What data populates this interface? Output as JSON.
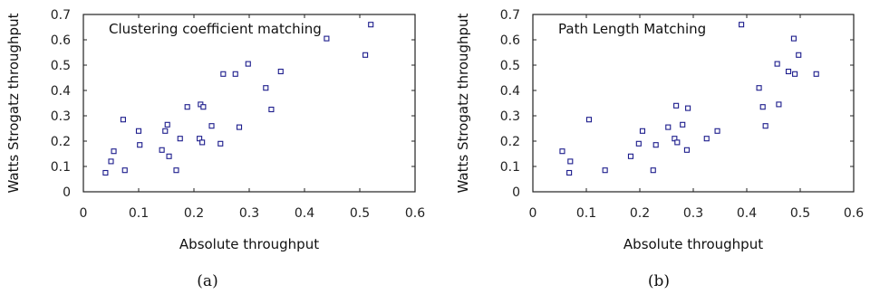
{
  "chart_data": [
    {
      "type": "scatter",
      "caption": "(a)",
      "title": "Clustering coefficient matching",
      "xlabel": "Absolute throughput",
      "ylabel": "Watts Strogatz throughput",
      "xlim": [
        0,
        0.6
      ],
      "ylim": [
        0,
        0.7
      ],
      "xticks": [
        "0",
        "0.1",
        "0.2",
        "0.3",
        "0.4",
        "0.5",
        "0.6"
      ],
      "yticks": [
        "0",
        "0.1",
        "0.2",
        "0.3",
        "0.4",
        "0.5",
        "0.6",
        "0.7"
      ],
      "grid": false,
      "marker_color": "#1c1c8c",
      "points": [
        [
          0.04,
          0.075
        ],
        [
          0.05,
          0.12
        ],
        [
          0.055,
          0.16
        ],
        [
          0.072,
          0.285
        ],
        [
          0.075,
          0.085
        ],
        [
          0.1,
          0.24
        ],
        [
          0.102,
          0.185
        ],
        [
          0.142,
          0.165
        ],
        [
          0.148,
          0.24
        ],
        [
          0.152,
          0.265
        ],
        [
          0.155,
          0.14
        ],
        [
          0.168,
          0.085
        ],
        [
          0.175,
          0.21
        ],
        [
          0.188,
          0.335
        ],
        [
          0.21,
          0.21
        ],
        [
          0.212,
          0.345
        ],
        [
          0.215,
          0.195
        ],
        [
          0.217,
          0.335
        ],
        [
          0.232,
          0.26
        ],
        [
          0.248,
          0.19
        ],
        [
          0.253,
          0.465
        ],
        [
          0.275,
          0.465
        ],
        [
          0.282,
          0.255
        ],
        [
          0.298,
          0.505
        ],
        [
          0.33,
          0.41
        ],
        [
          0.34,
          0.325
        ],
        [
          0.357,
          0.475
        ],
        [
          0.44,
          0.605
        ],
        [
          0.51,
          0.54
        ],
        [
          0.52,
          0.66
        ]
      ]
    },
    {
      "type": "scatter",
      "caption": "(b)",
      "title": "Path Length Matching",
      "xlabel": "Absolute throughput",
      "ylabel": "Watts Strogatz throughput",
      "xlim": [
        0,
        0.6
      ],
      "ylim": [
        0,
        0.7
      ],
      "xticks": [
        "0",
        "0.1",
        "0.2",
        "0.3",
        "0.4",
        "0.5",
        "0.6"
      ],
      "yticks": [
        "0",
        "0.1",
        "0.2",
        "0.3",
        "0.4",
        "0.5",
        "0.6",
        "0.7"
      ],
      "grid": false,
      "marker_color": "#1c1c8c",
      "points": [
        [
          0.055,
          0.16
        ],
        [
          0.068,
          0.075
        ],
        [
          0.07,
          0.12
        ],
        [
          0.105,
          0.285
        ],
        [
          0.135,
          0.085
        ],
        [
          0.183,
          0.14
        ],
        [
          0.198,
          0.19
        ],
        [
          0.205,
          0.24
        ],
        [
          0.225,
          0.085
        ],
        [
          0.23,
          0.185
        ],
        [
          0.253,
          0.255
        ],
        [
          0.265,
          0.21
        ],
        [
          0.268,
          0.34
        ],
        [
          0.27,
          0.195
        ],
        [
          0.28,
          0.265
        ],
        [
          0.288,
          0.165
        ],
        [
          0.29,
          0.33
        ],
        [
          0.325,
          0.21
        ],
        [
          0.345,
          0.24
        ],
        [
          0.39,
          0.66
        ],
        [
          0.423,
          0.41
        ],
        [
          0.43,
          0.335
        ],
        [
          0.435,
          0.26
        ],
        [
          0.457,
          0.505
        ],
        [
          0.46,
          0.345
        ],
        [
          0.478,
          0.475
        ],
        [
          0.488,
          0.605
        ],
        [
          0.49,
          0.465
        ],
        [
          0.497,
          0.54
        ],
        [
          0.53,
          0.465
        ]
      ]
    }
  ]
}
